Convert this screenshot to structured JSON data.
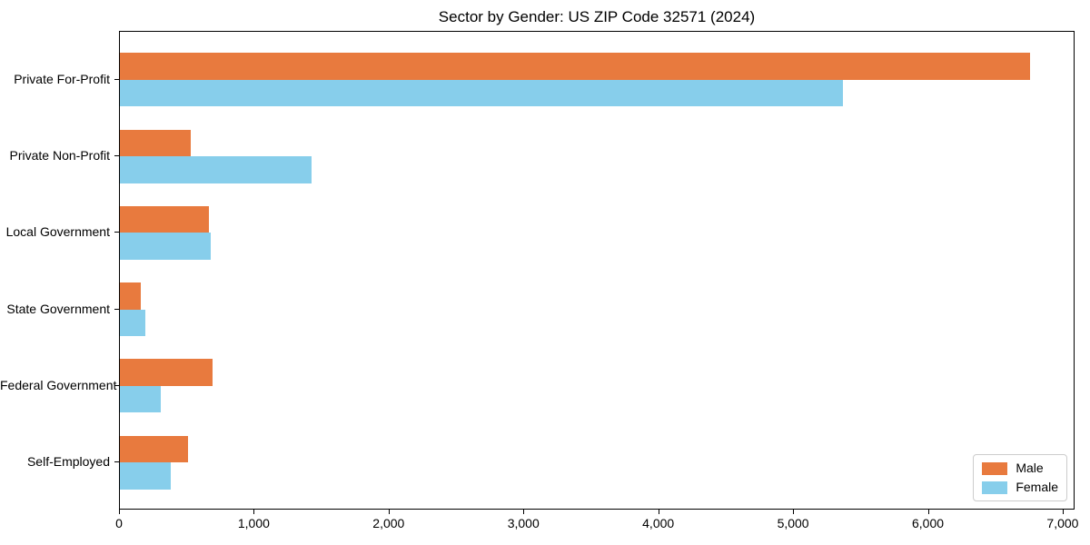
{
  "title": "Sector by Gender: US ZIP Code 32571 (2024)",
  "colors": {
    "male": "#e87a3e",
    "female": "#87ceeb",
    "spine": "#000000",
    "legend_border": "#cccccc"
  },
  "chart_data": {
    "type": "bar",
    "orientation": "horizontal",
    "title": "Sector by Gender: US ZIP Code 32571 (2024)",
    "categories": [
      "Private For-Profit",
      "Private Non-Profit",
      "Local Government",
      "State Government",
      "Federal Government",
      "Self-Employed"
    ],
    "series": [
      {
        "name": "Male",
        "color": "#e87a3e",
        "values": [
          6750,
          525,
          660,
          155,
          690,
          505
        ]
      },
      {
        "name": "Female",
        "color": "#87ceeb",
        "values": [
          5365,
          1425,
          675,
          190,
          305,
          375
        ]
      }
    ],
    "xlabel": "",
    "ylabel": "",
    "xlim": [
      0,
      7088
    ],
    "xticks": [
      0,
      1000,
      2000,
      3000,
      4000,
      5000,
      6000,
      7000
    ],
    "xtick_labels": [
      "0",
      "1,000",
      "2,000",
      "3,000",
      "4,000",
      "5,000",
      "6,000",
      "7,000"
    ],
    "grid": false,
    "legend": {
      "position": "lower right",
      "entries": [
        "Male",
        "Female"
      ]
    }
  }
}
